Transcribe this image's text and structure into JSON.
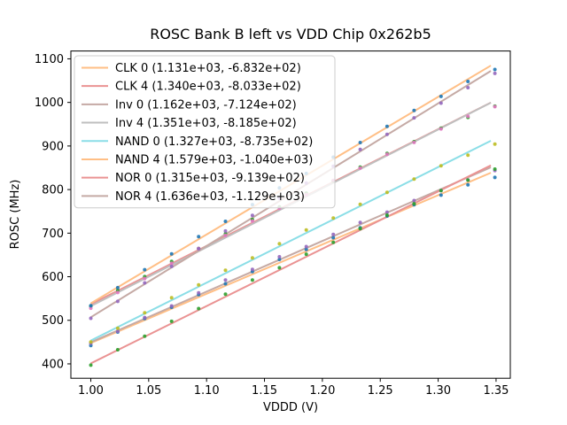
{
  "chart_data": {
    "type": "scatter",
    "title": "ROSC Bank B left vs VDD Chip 0x262b5",
    "xlabel": "VDDD (V)",
    "ylabel": "ROSC (MHz)",
    "grid": false,
    "legend_position": "upper left",
    "xlim": [
      0.9828,
      1.3623
    ],
    "ylim": [
      367,
      1118
    ],
    "xticks": [
      1.0,
      1.05,
      1.1,
      1.15,
      1.2,
      1.25,
      1.3,
      1.35
    ],
    "xtick_labels": [
      "1.00",
      "1.05",
      "1.10",
      "1.15",
      "1.20",
      "1.25",
      "1.30",
      "1.35"
    ],
    "yticks": [
      400,
      500,
      600,
      700,
      800,
      900,
      1000,
      1100
    ],
    "ytick_labels": [
      "400",
      "500",
      "600",
      "700",
      "800",
      "900",
      "1000",
      "1100"
    ],
    "x": [
      1.0,
      1.0233,
      1.0465,
      1.0698,
      1.0931,
      1.1163,
      1.1396,
      1.1629,
      1.1861,
      1.2094,
      1.2327,
      1.2559,
      1.2792,
      1.3025,
      1.3257,
      1.349
    ],
    "point_deviation_mhz": [
      -4,
      -1,
      2,
      4,
      5,
      6,
      6,
      6,
      5,
      4,
      3,
      2,
      0,
      -2,
      -6,
      -13
    ],
    "fit_line_x_range": [
      1.0,
      1.3455
    ],
    "series": [
      {
        "name": "CLK 0",
        "legend_label": "CLK 0 (1.131e+03, -6.832e+02)",
        "fit_slope_mhz_per_v": 1131,
        "fit_intercept_mhz": -683.2,
        "line_color": "#ffbf86",
        "marker_color": "#1f77b4"
      },
      {
        "name": "CLK 4",
        "legend_label": "CLK 4 (1.340e+03, -8.033e+02)",
        "fit_slope_mhz_per_v": 1340,
        "fit_intercept_mhz": -803.3,
        "line_color": "#ea9393",
        "marker_color": "#2ca02c"
      },
      {
        "name": "Inv 0",
        "legend_label": "Inv 0 (1.162e+03, -7.124e+02)",
        "fit_slope_mhz_per_v": 1162,
        "fit_intercept_mhz": -712.4,
        "line_color": "#c5aaa5",
        "marker_color": "#9467bd"
      },
      {
        "name": "Inv 4",
        "legend_label": "Inv 4 (1.351e+03, -8.185e+02)",
        "fit_slope_mhz_per_v": 1351,
        "fit_intercept_mhz": -818.5,
        "line_color": "#bfbfbf",
        "marker_color": "#e377c2"
      },
      {
        "name": "NAND 0",
        "legend_label": "NAND 0 (1.327e+03, -8.735e+02)",
        "fit_slope_mhz_per_v": 1327,
        "fit_intercept_mhz": -873.5,
        "line_color": "#8bdee7",
        "marker_color": "#bcbd22"
      },
      {
        "name": "NAND 4",
        "legend_label": "NAND 4 (1.579e+03, -1.040e+03)",
        "fit_slope_mhz_per_v": 1579,
        "fit_intercept_mhz": -1040.0,
        "line_color": "#ffbf86",
        "marker_color": "#1f77b4"
      },
      {
        "name": "NOR 0",
        "legend_label": "NOR 0 (1.315e+03, -9.139e+02)",
        "fit_slope_mhz_per_v": 1315,
        "fit_intercept_mhz": -913.9,
        "line_color": "#ea9393",
        "marker_color": "#2ca02c"
      },
      {
        "name": "NOR 4",
        "legend_label": "NOR 4 (1.636e+03, -1.129e+03)",
        "fit_slope_mhz_per_v": 1636,
        "fit_intercept_mhz": -1129.0,
        "line_color": "#c5aaa5",
        "marker_color": "#9467bd"
      }
    ]
  },
  "style": {
    "spine_color": "#000000",
    "legend_border_color": "#cccccc",
    "legend_background": "rgba(255,255,255,0.8)"
  }
}
